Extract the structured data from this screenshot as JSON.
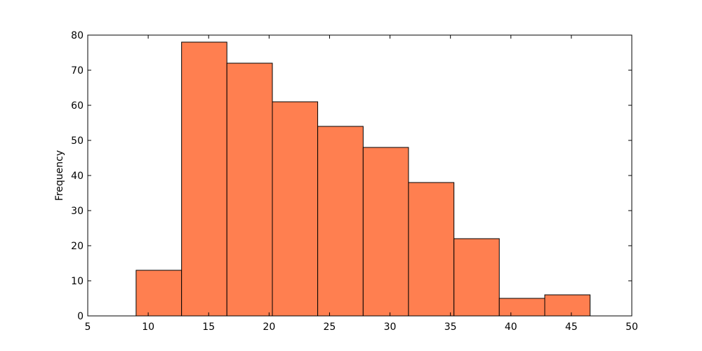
{
  "chart_data": {
    "type": "histogram",
    "y_label": "Frequency",
    "bins": [
      9.0,
      12.76,
      16.51,
      20.27,
      24.02,
      27.78,
      31.53,
      35.29,
      39.04,
      42.8,
      46.55
    ],
    "values": [
      13,
      78,
      72,
      61,
      54,
      48,
      38,
      22,
      5,
      6
    ],
    "color": "#ff7f50",
    "xlim": [
      5,
      50
    ],
    "xticks": [
      5,
      10,
      15,
      20,
      25,
      30,
      35,
      40,
      45,
      50
    ],
    "ylim": [
      0,
      80
    ],
    "yticks": [
      0,
      10,
      20,
      30,
      40,
      50,
      60,
      70,
      80
    ]
  }
}
